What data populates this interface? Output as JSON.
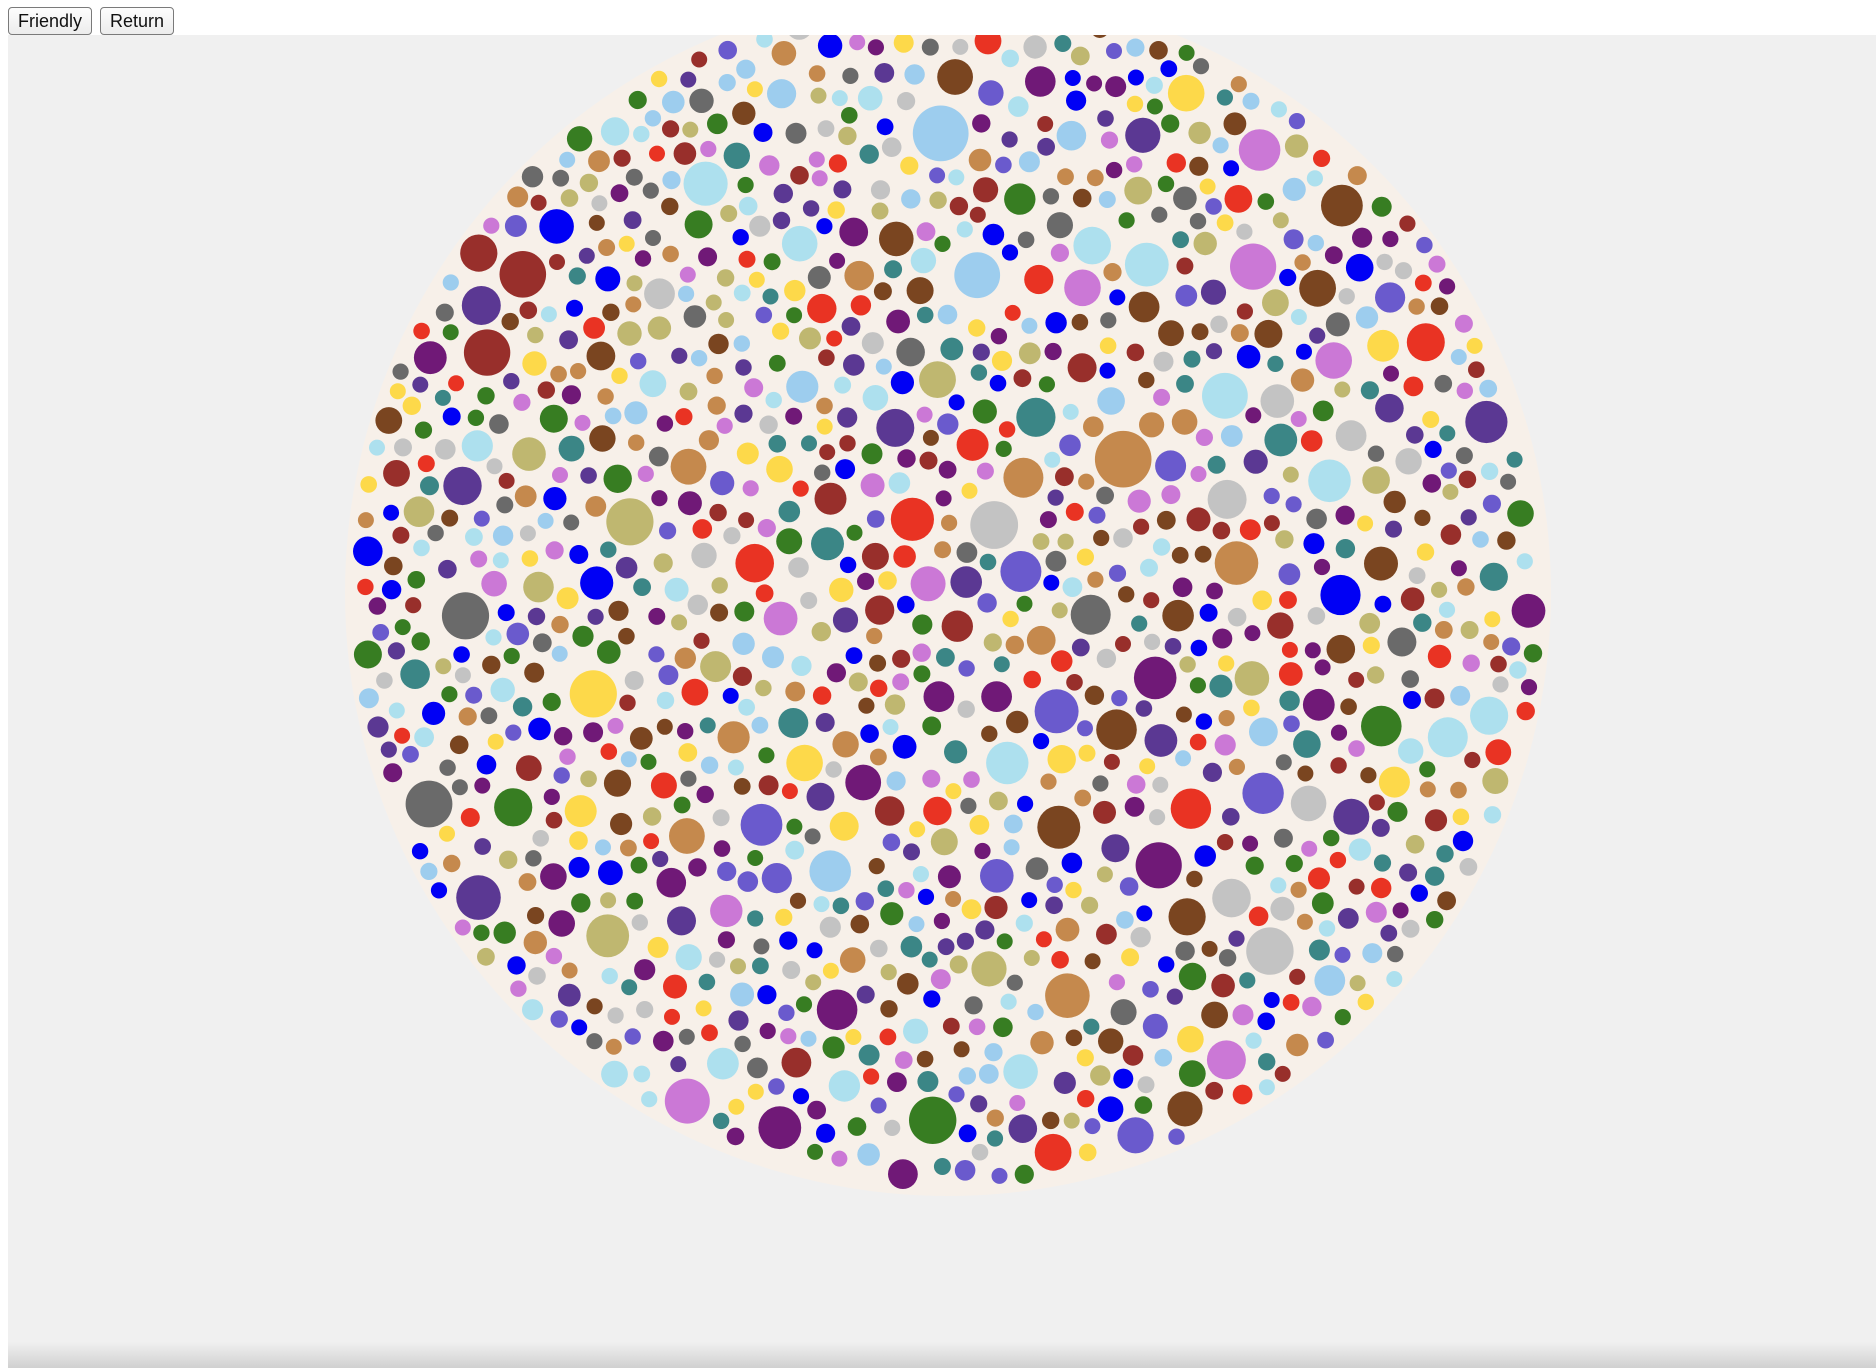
{
  "toolbar": {
    "friendly_label": "Friendly",
    "return_label": "Return"
  },
  "visualization": {
    "type": "packed-circles",
    "background_color": "#f0f0f0",
    "disc_color": "#f7f0e9",
    "palette": [
      "#0000f5",
      "#6a5acd",
      "#377d22",
      "#7a4520",
      "#e93323",
      "#fdd94a",
      "#bfb770",
      "#c3c3c3",
      "#ade0ee",
      "#3b8686",
      "#982f2b",
      "#5b3893",
      "#cb78d6",
      "#701977",
      "#6a6a6a",
      "#c5894d",
      "#9dcdee"
    ]
  }
}
